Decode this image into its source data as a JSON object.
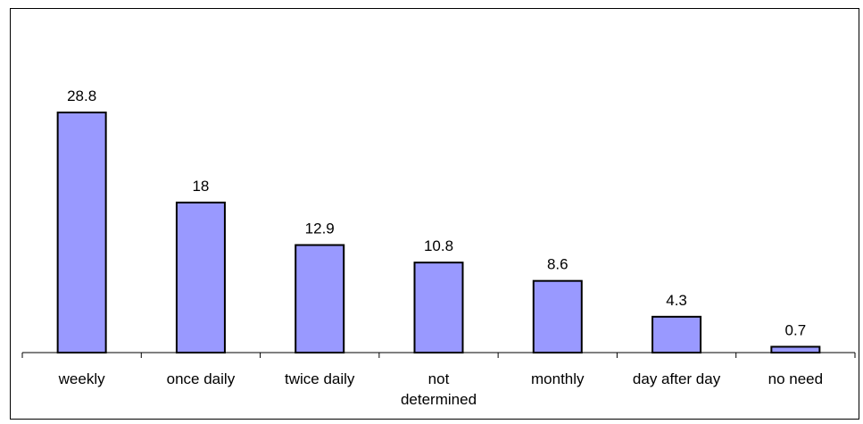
{
  "chart_data": {
    "type": "bar",
    "categories": [
      "weekly",
      "once daily",
      "twice daily",
      "not determined",
      "monthly",
      "day after day",
      "no need"
    ],
    "category_lines": [
      [
        "weekly"
      ],
      [
        "once daily"
      ],
      [
        "twice daily"
      ],
      [
        "not",
        "determined"
      ],
      [
        "monthly"
      ],
      [
        "day after day"
      ],
      [
        "no need"
      ]
    ],
    "values": [
      28.8,
      18,
      12.9,
      10.8,
      8.6,
      4.3,
      0.7
    ],
    "data_labels": [
      "28.8",
      "18",
      "12.9",
      "10.8",
      "8.6",
      "4.3",
      "0.7"
    ],
    "title": "",
    "xlabel": "",
    "ylabel": "",
    "ylim": [
      0,
      33
    ],
    "grid": false,
    "legend": "none",
    "colors": {
      "bar_fill": "#9999ff",
      "bar_stroke": "#000000",
      "axis": "#000000",
      "text": "#000000",
      "frame": "#000000"
    }
  }
}
